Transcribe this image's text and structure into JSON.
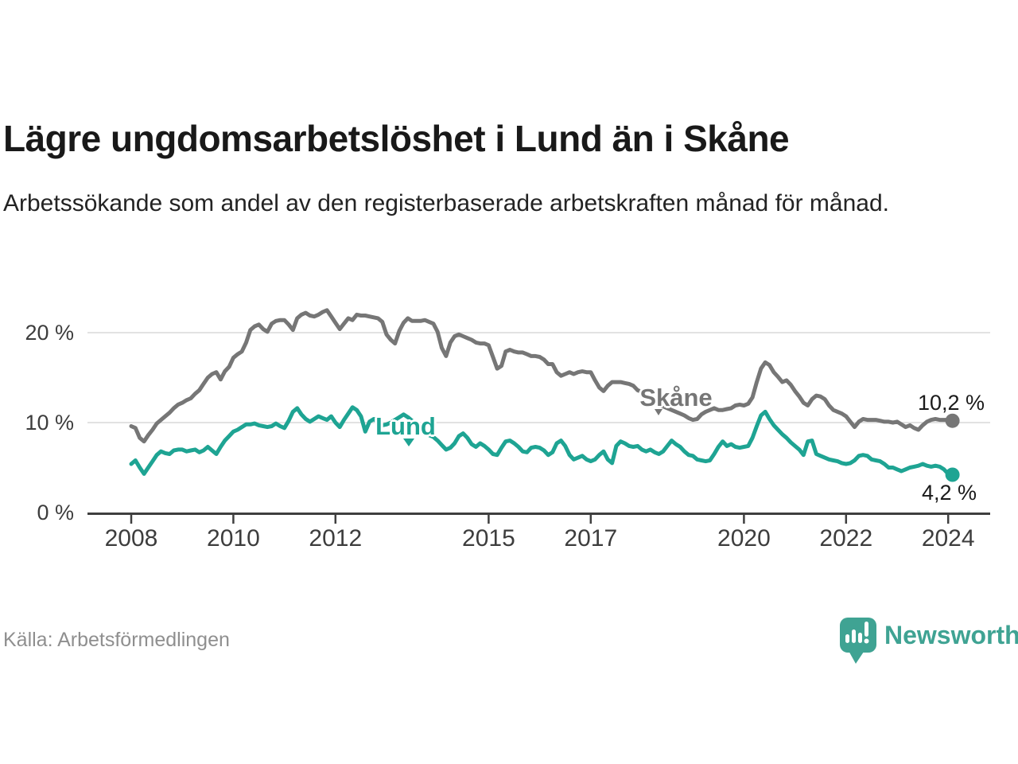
{
  "title": "Lägre ungdomsarbetslöshet i Lund än i Skåne",
  "subtitle": "Arbetssökande som andel av den registerbaserade arbetskraften månad för månad.",
  "source": "Källa: Arbetsförmedlingen",
  "branding": {
    "name": "Newsworthy",
    "color": "#3FA393"
  },
  "chart_data": {
    "type": "line",
    "title": "Lägre ungdomsarbetslöshet i Lund än i Skåne",
    "xlabel": "",
    "ylabel": "",
    "x_start": "2008-01",
    "x_end": "2024-02",
    "x_interval": "monthly",
    "x_tick_years": [
      2008,
      2010,
      2012,
      2015,
      2017,
      2020,
      2022,
      2024
    ],
    "x_tick_labels": [
      "2008",
      "2010",
      "2012",
      "2015",
      "2017",
      "2020",
      "2022",
      "2024"
    ],
    "y_ticks": [
      0,
      10,
      20
    ],
    "y_tick_labels": [
      "0 %",
      "10 %",
      "20 %"
    ],
    "ylim": [
      0,
      23.5
    ],
    "grid": "horizontal",
    "legend_position": "inline-labels",
    "series": [
      {
        "name": "Skåne",
        "color": "#767676",
        "end_label": "10,2 %",
        "end_value": 10.2,
        "values": [
          9.6,
          9.4,
          8.3,
          7.9,
          8.6,
          9.2,
          9.9,
          10.3,
          10.7,
          11.1,
          11.6,
          12.0,
          12.2,
          12.5,
          12.7,
          13.2,
          13.6,
          14.3,
          15.0,
          15.4,
          15.6,
          14.8,
          15.7,
          16.2,
          17.2,
          17.6,
          17.9,
          18.9,
          20.3,
          20.7,
          20.9,
          20.4,
          20.1,
          21.0,
          21.3,
          21.4,
          21.4,
          20.9,
          20.3,
          21.6,
          22.0,
          22.2,
          21.9,
          21.8,
          22.0,
          22.3,
          22.5,
          21.8,
          21.1,
          20.4,
          21.0,
          21.6,
          21.4,
          22.0,
          21.9,
          21.9,
          21.8,
          21.7,
          21.6,
          21.2,
          19.8,
          19.2,
          18.8,
          20.2,
          21.1,
          21.6,
          21.3,
          21.3,
          21.3,
          21.4,
          21.2,
          21.0,
          20.1,
          18.3,
          17.4,
          18.9,
          19.6,
          19.8,
          19.6,
          19.4,
          19.2,
          18.9,
          18.8,
          18.8,
          18.6,
          17.3,
          16.0,
          16.3,
          17.9,
          18.1,
          17.9,
          17.8,
          17.8,
          17.6,
          17.4,
          17.4,
          17.3,
          17.0,
          16.5,
          16.5,
          15.6,
          15.2,
          15.4,
          15.6,
          15.4,
          15.6,
          15.7,
          15.6,
          15.6,
          14.7,
          13.9,
          13.5,
          14.1,
          14.5,
          14.5,
          14.5,
          14.4,
          14.3,
          14.1,
          13.6,
          13.4,
          13.0,
          12.6,
          12.3,
          12.0,
          11.8,
          11.6,
          11.4,
          11.2,
          11.0,
          10.8,
          10.5,
          10.3,
          10.4,
          10.9,
          11.2,
          11.4,
          11.6,
          11.4,
          11.4,
          11.5,
          11.6,
          11.9,
          12.0,
          11.9,
          12.1,
          12.8,
          14.5,
          16.0,
          16.7,
          16.4,
          15.6,
          15.1,
          14.5,
          14.7,
          14.2,
          13.5,
          12.9,
          12.2,
          11.9,
          12.6,
          13.0,
          12.9,
          12.6,
          11.9,
          11.4,
          11.2,
          11.0,
          10.7,
          10.1,
          9.5,
          10.1,
          10.4,
          10.3,
          10.3,
          10.3,
          10.2,
          10.1,
          10.1,
          10.0,
          10.1,
          9.8,
          9.5,
          9.7,
          9.4,
          9.2,
          9.7,
          10.1,
          10.3,
          10.4,
          10.3,
          10.3,
          10.3,
          10.2
        ]
      },
      {
        "name": "Lund",
        "color": "#1EA493",
        "end_label": "4,2 %",
        "end_value": 4.2,
        "values": [
          5.4,
          5.8,
          5.0,
          4.3,
          5.0,
          5.7,
          6.4,
          6.8,
          6.6,
          6.5,
          6.9,
          7.0,
          7.0,
          6.8,
          6.9,
          7.0,
          6.7,
          6.9,
          7.3,
          6.9,
          6.5,
          7.3,
          8.0,
          8.5,
          9.0,
          9.2,
          9.5,
          9.8,
          9.8,
          9.9,
          9.7,
          9.6,
          9.5,
          9.6,
          9.9,
          9.6,
          9.4,
          10.2,
          11.2,
          11.6,
          10.9,
          10.4,
          10.1,
          10.4,
          10.7,
          10.5,
          10.3,
          10.7,
          10.0,
          9.5,
          10.3,
          11.0,
          11.7,
          11.4,
          10.7,
          9.0,
          10.1,
          10.4,
          10.0,
          9.7,
          9.8,
          10.0,
          10.3,
          10.6,
          10.9,
          10.6,
          10.2,
          9.6,
          9.1,
          8.8,
          8.6,
          8.4,
          8.0,
          7.5,
          7.0,
          7.2,
          7.7,
          8.5,
          8.8,
          8.3,
          7.6,
          7.3,
          7.7,
          7.4,
          7.0,
          6.5,
          6.4,
          7.2,
          7.9,
          8.0,
          7.7,
          7.3,
          6.8,
          6.7,
          7.2,
          7.3,
          7.2,
          6.9,
          6.4,
          6.7,
          7.7,
          8.0,
          7.4,
          6.4,
          5.9,
          6.1,
          6.3,
          5.9,
          5.7,
          5.9,
          6.4,
          6.8,
          5.9,
          5.5,
          7.4,
          7.9,
          7.7,
          7.4,
          7.3,
          7.4,
          7.0,
          6.8,
          7.0,
          6.7,
          6.5,
          6.8,
          7.4,
          8.0,
          7.6,
          7.3,
          6.8,
          6.4,
          6.3,
          5.9,
          5.8,
          5.7,
          5.8,
          6.5,
          7.3,
          7.9,
          7.4,
          7.6,
          7.3,
          7.2,
          7.3,
          7.4,
          8.3,
          9.6,
          10.8,
          11.2,
          10.4,
          9.7,
          9.2,
          8.7,
          8.3,
          7.8,
          7.4,
          7.0,
          6.4,
          7.9,
          8.0,
          6.5,
          6.3,
          6.1,
          5.9,
          5.8,
          5.7,
          5.5,
          5.4,
          5.5,
          5.8,
          6.3,
          6.4,
          6.3,
          5.9,
          5.8,
          5.7,
          5.4,
          5.0,
          5.0,
          4.8,
          4.6,
          4.8,
          5.0,
          5.1,
          5.2,
          5.4,
          5.2,
          5.1,
          5.2,
          5.1,
          4.8,
          4.3,
          4.2
        ]
      }
    ]
  }
}
